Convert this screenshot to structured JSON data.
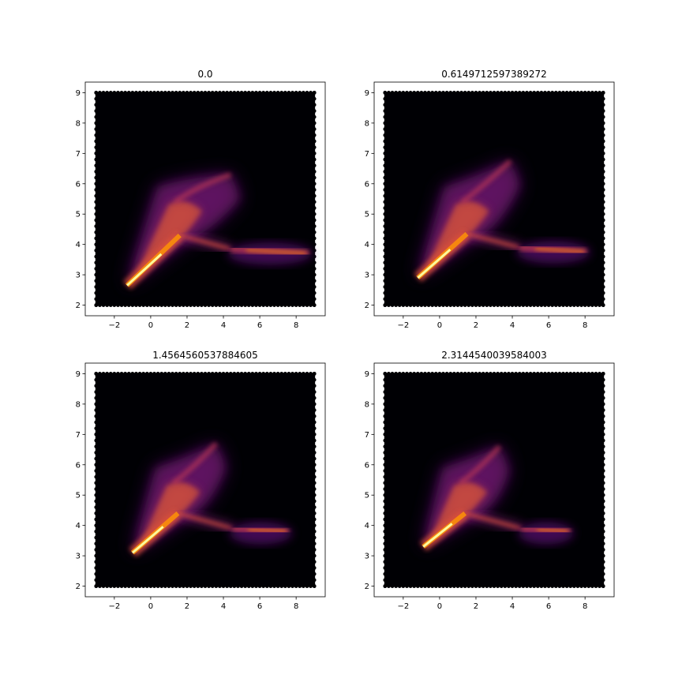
{
  "figure": {
    "background": "#ffffff",
    "colormap": "inferno",
    "empty_bin_color": "#000004",
    "peak_color": "#fcffa4"
  },
  "chart_data": [
    {
      "type": "heatmap",
      "subtype": "hexbin",
      "title": "0.0",
      "xlim": [
        -3.6,
        9.6
      ],
      "ylim": [
        1.65,
        9.35
      ],
      "xticks": [
        "−2",
        "0",
        "2",
        "4",
        "6",
        "8"
      ],
      "yticks": [
        "2",
        "3",
        "4",
        "5",
        "6",
        "7",
        "8",
        "9"
      ],
      "extent": {
        "x": [
          -3,
          9
        ],
        "y": [
          2,
          9
        ]
      },
      "structure": {
        "tip": [
          -1.3,
          2.65
        ],
        "junction": [
          1.6,
          4.3
        ],
        "branch_upper_end": [
          4.4,
          6.3
        ],
        "branch_right_start": [
          4.4,
          3.85
        ],
        "branch_right_end": [
          8.7,
          3.7
        ]
      },
      "grid": false
    },
    {
      "type": "heatmap",
      "subtype": "hexbin",
      "title": "0.6149712597389272",
      "xlim": [
        -3.6,
        9.6
      ],
      "ylim": [
        1.65,
        9.35
      ],
      "xticks": [
        "−2",
        "0",
        "2",
        "4",
        "6",
        "8"
      ],
      "yticks": [
        "2",
        "3",
        "4",
        "5",
        "6",
        "7",
        "8",
        "9"
      ],
      "extent": {
        "x": [
          -3,
          9
        ],
        "y": [
          2,
          9
        ]
      },
      "structure": {
        "tip": [
          -1.2,
          2.9
        ],
        "junction": [
          1.5,
          4.35
        ],
        "branch_upper_end": [
          3.9,
          6.75
        ],
        "branch_right_start": [
          4.4,
          3.9
        ],
        "branch_right_end": [
          8.1,
          3.75
        ]
      },
      "grid": false
    },
    {
      "type": "heatmap",
      "subtype": "hexbin",
      "title": "1.4564560537884605",
      "xlim": [
        -3.6,
        9.6
      ],
      "ylim": [
        1.65,
        9.35
      ],
      "xticks": [
        "−2",
        "0",
        "2",
        "4",
        "6",
        "8"
      ],
      "yticks": [
        "2",
        "3",
        "4",
        "5",
        "6",
        "7",
        "8",
        "9"
      ],
      "extent": {
        "x": [
          -3,
          9
        ],
        "y": [
          2,
          9
        ]
      },
      "structure": {
        "tip": [
          -1.0,
          3.1
        ],
        "junction": [
          1.5,
          4.4
        ],
        "branch_upper_end": [
          3.6,
          6.7
        ],
        "branch_right_start": [
          4.5,
          3.9
        ],
        "branch_right_end": [
          7.6,
          3.8
        ]
      },
      "grid": false
    },
    {
      "type": "heatmap",
      "subtype": "hexbin",
      "title": "2.3144540039584003",
      "xlim": [
        -3.6,
        9.6
      ],
      "ylim": [
        1.65,
        9.35
      ],
      "xticks": [
        "−2",
        "0",
        "2",
        "4",
        "6",
        "8"
      ],
      "yticks": [
        "2",
        "3",
        "4",
        "5",
        "6",
        "7",
        "8",
        "9"
      ],
      "extent": {
        "x": [
          -3,
          9
        ],
        "y": [
          2,
          9
        ]
      },
      "structure": {
        "tip": [
          -0.9,
          3.3
        ],
        "junction": [
          1.4,
          4.4
        ],
        "branch_upper_end": [
          3.3,
          6.6
        ],
        "branch_right_start": [
          4.5,
          3.9
        ],
        "branch_right_end": [
          7.2,
          3.8
        ]
      },
      "grid": false
    }
  ]
}
